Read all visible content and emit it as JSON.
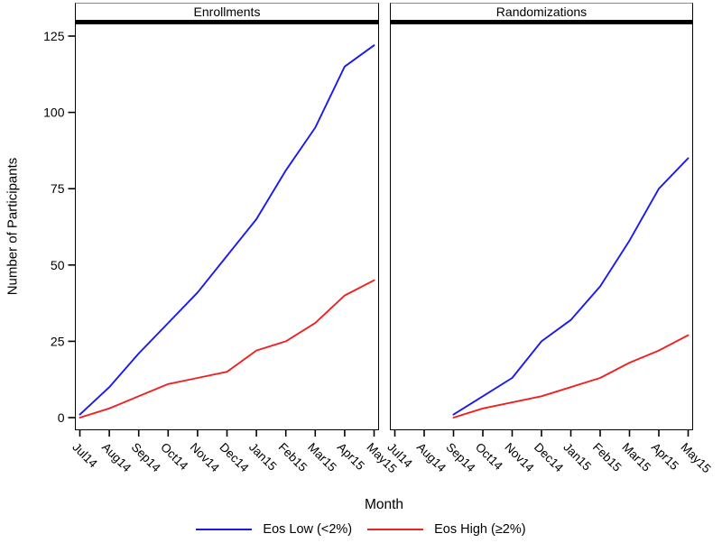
{
  "figure": {
    "ylabel": "Number of Participants",
    "xlabel": "Month"
  },
  "chart_data": [
    {
      "type": "line",
      "title": "Enrollments",
      "x": [
        "Jul14",
        "Aug14",
        "Sep14",
        "Oct14",
        "Nov14",
        "Dec14",
        "Jan15",
        "Feb15",
        "Mar15",
        "Apr15",
        "May15"
      ],
      "xlabel": "Month",
      "ylabel": "Number of Participants",
      "ylim": [
        0,
        125
      ],
      "yticks": [
        0,
        25,
        50,
        75,
        100,
        125
      ],
      "tick_label_angle": 45,
      "grid": false,
      "series": [
        {
          "name": "Eos Low (<2%)",
          "color": "#1a1aee",
          "values": [
            1,
            10,
            21,
            31,
            41,
            53,
            65,
            81,
            95,
            115,
            122
          ]
        },
        {
          "name": "Eos High (≥2%)",
          "color": "#ee2222",
          "values": [
            0,
            3,
            7,
            11,
            13,
            15,
            22,
            25,
            31,
            40,
            45
          ]
        }
      ]
    },
    {
      "type": "line",
      "title": "Randomizations",
      "x": [
        "Jul14",
        "Aug14",
        "Sep14",
        "Oct14",
        "Nov14",
        "Dec14",
        "Jan15",
        "Feb15",
        "Mar15",
        "Apr15",
        "May15"
      ],
      "xlabel": "Month",
      "ylabel": "Number of Participants",
      "ylim": [
        0,
        125
      ],
      "yticks": [
        0,
        25,
        50,
        75,
        100,
        125
      ],
      "tick_label_angle": 45,
      "grid": false,
      "series": [
        {
          "name": "Eos Low (<2%)",
          "color": "#1a1aee",
          "values": [
            null,
            null,
            1,
            7,
            13,
            25,
            32,
            43,
            58,
            75,
            85
          ]
        },
        {
          "name": "Eos High (≥2%)",
          "color": "#ee2222",
          "values": [
            null,
            null,
            0,
            3,
            5,
            7,
            10,
            13,
            18,
            22,
            27
          ]
        }
      ]
    }
  ],
  "legend": {
    "position": "bottom",
    "items": [
      {
        "label": "Eos Low (<2%)",
        "color": "#1a1aee"
      },
      {
        "label": "Eos High (≥2%)",
        "color": "#ee2222"
      }
    ]
  }
}
